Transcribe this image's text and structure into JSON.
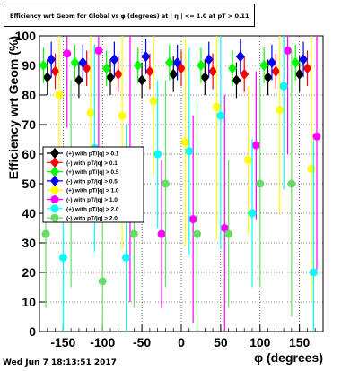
{
  "title": "Efficiency wrt Geom for Global vs φ (degrees) at | η | <= 1.0 at pT > 0.11",
  "footer_timestamp": "Wed Jun  7 18:13:51 2017",
  "chart_data": {
    "type": "scatter",
    "xlabel": "φ (degrees)",
    "ylabel": "Efficiency wrt Geom (%)",
    "xlim": [
      -180,
      180
    ],
    "ylim": [
      0,
      100
    ],
    "x_ticks": [
      -150,
      -100,
      -50,
      0,
      50,
      100,
      150
    ],
    "y_ticks": [
      0,
      10,
      20,
      30,
      40,
      50,
      60,
      70,
      80,
      90,
      100
    ],
    "grid": true,
    "legend_position": "left-middle",
    "series": [
      {
        "name": "(+) with pT/|q| > 0.1",
        "color": "#000000",
        "marker": "diamond",
        "x": [
          -170,
          -130,
          -90,
          -50,
          -10,
          30,
          70,
          110,
          150
        ],
        "y": [
          86,
          85,
          86,
          85,
          87,
          86,
          85,
          86,
          87
        ]
      },
      {
        "name": "(-) with pT/|q| > 0.1",
        "color": "#ff0000",
        "marker": "diamond",
        "x": [
          -160,
          -120,
          -80,
          -40,
          0,
          40,
          80,
          120,
          160
        ],
        "y": [
          88,
          89,
          87,
          88,
          89,
          88,
          87,
          88,
          89
        ]
      },
      {
        "name": "(+) with pT/|q| > 0.5",
        "color": "#00ff00",
        "marker": "diamond",
        "x": [
          -175,
          -135,
          -95,
          -55,
          -15,
          25,
          65,
          105,
          145
        ],
        "y": [
          90,
          91,
          89,
          90,
          91,
          90,
          89,
          90,
          91
        ]
      },
      {
        "name": "(-) with pT/|q| > 0.5",
        "color": "#0000ff",
        "marker": "diamond",
        "x": [
          -165,
          -125,
          -85,
          -45,
          -5,
          35,
          75,
          115,
          155
        ],
        "y": [
          92,
          91,
          92,
          93,
          91,
          92,
          93,
          91,
          92
        ]
      },
      {
        "name": "(+) with pT/|q| > 1.0",
        "color": "#ffff00",
        "marker": "circle",
        "x": [
          -155,
          -115,
          -75,
          -35,
          5,
          45,
          85,
          125,
          165
        ],
        "y": [
          80,
          74,
          73,
          78,
          64,
          76,
          58,
          75,
          55
        ]
      },
      {
        "name": "(-) with pT/|q| > 1.0",
        "color": "#ff00ff",
        "marker": "circle",
        "x": [
          -145,
          -105,
          -65,
          -25,
          15,
          55,
          95,
          135,
          172
        ],
        "y": [
          94,
          95,
          55,
          33,
          38,
          35,
          63,
          95,
          66
        ]
      },
      {
        "name": "(+) with pT/|q| > 2.0",
        "color": "#00ffff",
        "marker": "circle",
        "x": [
          -150,
          -110,
          -70,
          -30,
          10,
          50,
          90,
          130,
          168
        ],
        "y": [
          25,
          62,
          25,
          60,
          61,
          73,
          40,
          83,
          20
        ]
      },
      {
        "name": "(-) with pT/|q| > 2.0",
        "color": "#66dd66",
        "marker": "circle",
        "x": [
          -172,
          -140,
          -100,
          -60,
          -20,
          20,
          60,
          100,
          140
        ],
        "y": [
          33,
          50,
          17,
          33,
          50,
          33,
          33,
          50,
          50
        ]
      }
    ]
  }
}
